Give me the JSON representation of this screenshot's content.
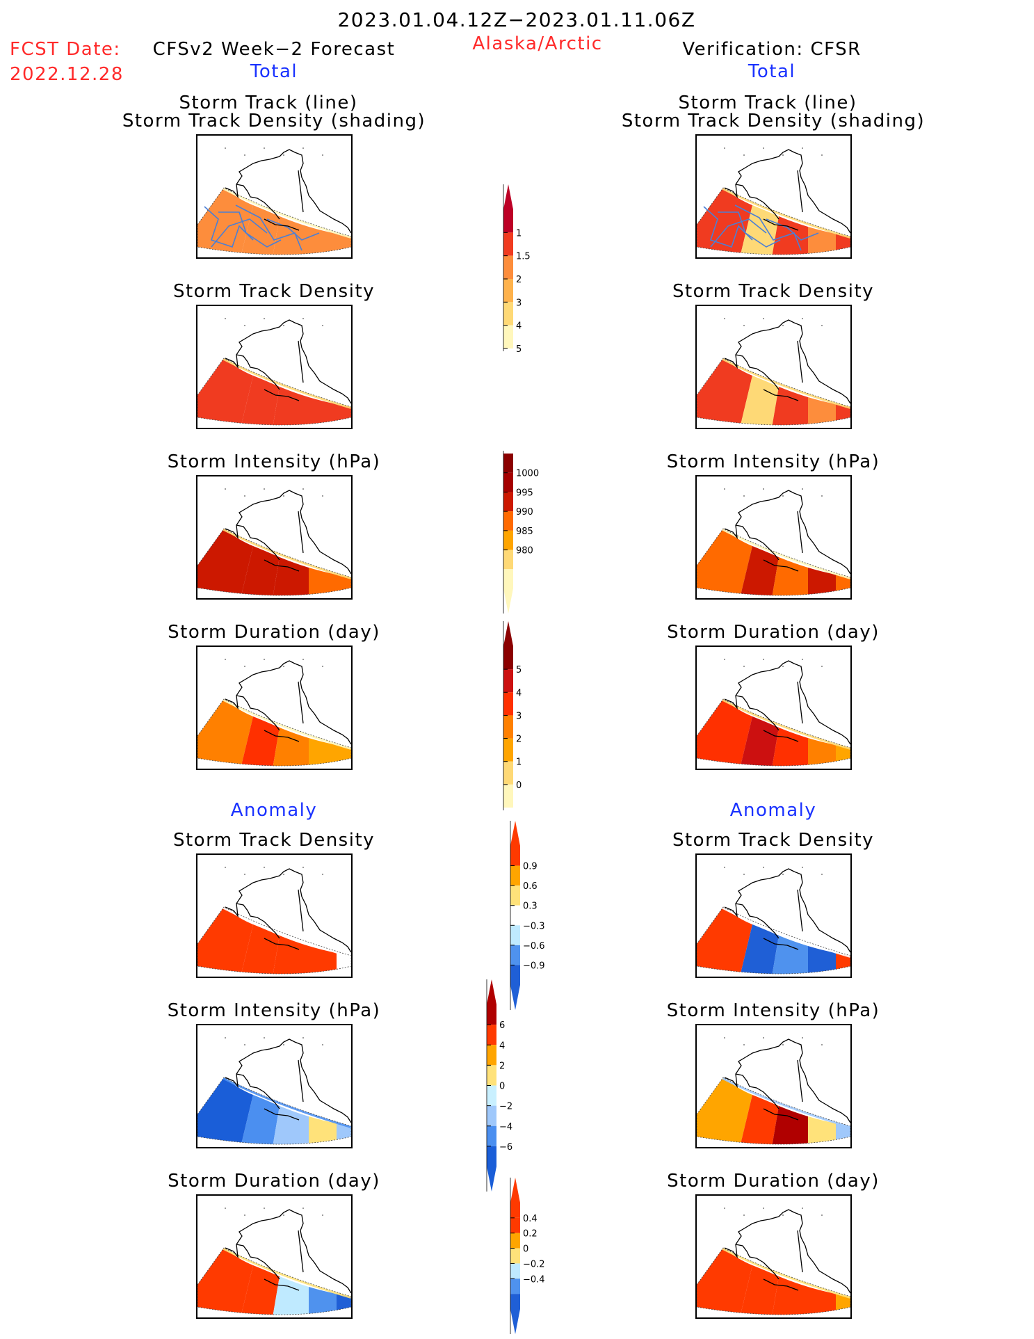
{
  "header": {
    "period": "2023.01.04.12Z−2023.01.11.06Z",
    "region": "Alaska/Arctic",
    "fcst_label": "FCST Date:",
    "fcst_date": "2022.12.28",
    "left_title": "CFSv2 Week−2 Forecast",
    "right_title": "Verification: CFSR",
    "left_sub": "Total",
    "right_sub": "Total",
    "left_anomaly": "Anomaly",
    "right_anomaly": "Anomaly"
  },
  "panel_titles": {
    "track_line": "Storm Track (line)",
    "track_shading": "Storm Track Density (shading)",
    "density": "Storm Track Density",
    "intensity": "Storm Intensity (hPa)",
    "duration": "Storm Duration (day)"
  },
  "chart_data": [
    {
      "type": "heatmap",
      "name": "forecast-track-density-lines",
      "scale": "density",
      "colorbar": [
        "1",
        "1.5",
        "2",
        "3",
        "4",
        "5"
      ],
      "zones": [
        4,
        4,
        4,
        4,
        4
      ]
    },
    {
      "type": "heatmap",
      "name": "verification-track-density-lines",
      "scale": "density",
      "colorbar": [
        "1",
        "1.5",
        "2",
        "3",
        "4",
        "5"
      ],
      "zones": [
        5,
        2,
        5,
        4,
        5
      ]
    },
    {
      "type": "heatmap",
      "name": "forecast-track-density",
      "scale": "density",
      "zones": [
        5,
        5,
        5,
        5,
        5
      ]
    },
    {
      "type": "heatmap",
      "name": "verification-track-density",
      "scale": "density",
      "zones": [
        5,
        2,
        5,
        4,
        5
      ]
    },
    {
      "type": "heatmap",
      "name": "forecast-intensity",
      "scale": "intensity",
      "colorbar": [
        "1000",
        "995",
        "990",
        "985",
        "980"
      ],
      "zones": [
        5,
        5,
        5,
        4,
        4
      ]
    },
    {
      "type": "heatmap",
      "name": "verification-intensity",
      "scale": "intensity",
      "zones": [
        4,
        5,
        4,
        5,
        4
      ]
    },
    {
      "type": "heatmap",
      "name": "forecast-duration",
      "scale": "duration",
      "colorbar": [
        "5",
        "4",
        "3",
        "2",
        "1",
        "0"
      ],
      "zones": [
        4,
        5,
        4,
        3,
        3
      ]
    },
    {
      "type": "heatmap",
      "name": "verification-duration",
      "scale": "duration",
      "zones": [
        5,
        6,
        5,
        4,
        3
      ]
    },
    {
      "type": "heatmap",
      "name": "forecast-density-anomaly",
      "scale": "anom_density",
      "colorbar": [
        "0.9",
        "0.6",
        "0.3",
        "−0.3",
        "−0.6",
        "−0.9"
      ],
      "zones": [
        6,
        6,
        6,
        6,
        3
      ]
    },
    {
      "type": "heatmap",
      "name": "verification-density-anomaly",
      "scale": "anom_density",
      "zones": [
        6,
        0,
        1,
        0,
        6
      ]
    },
    {
      "type": "heatmap",
      "name": "forecast-intensity-anomaly",
      "scale": "anom_intensity",
      "colorbar": [
        "6",
        "4",
        "2",
        "0",
        "−2",
        "−4",
        "−6"
      ],
      "zones": [
        0,
        1,
        2,
        4,
        2
      ]
    },
    {
      "type": "heatmap",
      "name": "verification-intensity-anomaly",
      "scale": "anom_intensity",
      "zones": [
        5,
        6,
        7,
        4,
        2
      ]
    },
    {
      "type": "heatmap",
      "name": "forecast-duration-anomaly",
      "scale": "anom_duration",
      "colorbar": [
        "0.4",
        "0.2",
        "0",
        "−0.2",
        "−0.4"
      ],
      "zones": [
        6,
        5,
        2,
        1,
        0
      ]
    },
    {
      "type": "heatmap",
      "name": "verification-duration-anomaly",
      "scale": "anom_duration",
      "zones": [
        6,
        6,
        6,
        6,
        4
      ]
    }
  ],
  "palettes": {
    "density": [
      "#ffffff",
      "#fff7bc",
      "#fed976",
      "#feb24c",
      "#fd8d3c",
      "#f03b20",
      "#bd0026",
      "#8b0000"
    ],
    "intensity": [
      "#ffffff",
      "#fff7bc",
      "#fed976",
      "#ffa500",
      "#ff6a00",
      "#cc1800",
      "#a50000",
      "#8b0000"
    ],
    "duration": [
      "#ffffff",
      "#fff7bc",
      "#fed976",
      "#ffa500",
      "#ff8000",
      "#ff3000",
      "#cc1010",
      "#8b0000"
    ],
    "anom_density": [
      "#1f5fd6",
      "#4f92ee",
      "#bfeaff",
      "#ffffff",
      "#ffe27a",
      "#ffa500",
      "#ff3a00"
    ],
    "anom_intensity": [
      "#1a5ed8",
      "#4b8ff0",
      "#9fc8fb",
      "#c9f0ff",
      "#ffe27a",
      "#ffa500",
      "#ff3a00",
      "#b00000"
    ],
    "anom_duration": [
      "#1f5fd6",
      "#4f92ee",
      "#bfeaff",
      "#ffe27a",
      "#ffa500",
      "#ff3a00",
      "#ff3a00"
    ]
  }
}
